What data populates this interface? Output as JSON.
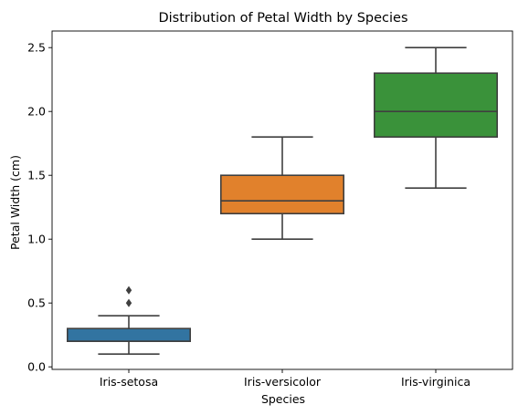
{
  "chart_data": {
    "type": "box",
    "title": "Distribution of Petal Width by Species",
    "xlabel": "Species",
    "ylabel": "Petal Width (cm)",
    "ylim": [
      -0.02,
      2.63
    ],
    "yticks": [
      0.0,
      0.5,
      1.0,
      1.5,
      2.0,
      2.5
    ],
    "ytick_labels": [
      "0.0",
      "0.5",
      "1.0",
      "1.5",
      "2.0",
      "2.5"
    ],
    "categories": [
      "Iris-setosa",
      "Iris-versicolor",
      "Iris-virginica"
    ],
    "grid": false,
    "series": [
      {
        "category": "Iris-setosa",
        "color": "#3274a1",
        "whisker_low": 0.1,
        "q1": 0.2,
        "median": 0.2,
        "q3": 0.3,
        "whisker_high": 0.4,
        "outliers": [
          0.5,
          0.6
        ]
      },
      {
        "category": "Iris-versicolor",
        "color": "#e1812c",
        "whisker_low": 1.0,
        "q1": 1.2,
        "median": 1.3,
        "q3": 1.5,
        "whisker_high": 1.8,
        "outliers": []
      },
      {
        "category": "Iris-virginica",
        "color": "#3a923a",
        "whisker_low": 1.4,
        "q1": 1.8,
        "median": 2.0,
        "q3": 2.3,
        "whisker_high": 2.5,
        "outliers": []
      }
    ]
  }
}
